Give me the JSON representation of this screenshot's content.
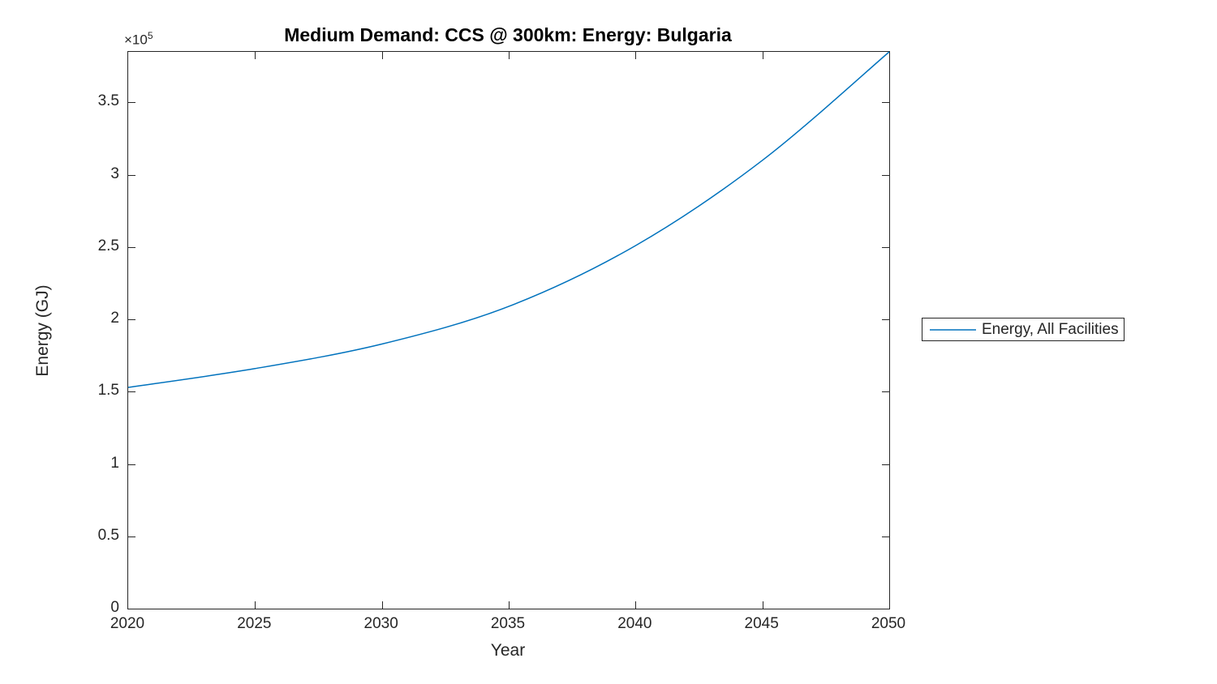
{
  "figure": {
    "title": "Medium Demand: CCS @ 300km: Energy: Bulgaria",
    "xlabel": "Year",
    "ylabel": "Energy (GJ)",
    "y_multiplier_base": "×10",
    "y_multiplier_exp": "5",
    "legend": {
      "label": "Energy, All Facilities"
    },
    "colors": {
      "line": "#0072BD",
      "axis": "#262626",
      "title": "#000000",
      "background": "#ffffff"
    }
  },
  "chart_data": {
    "type": "line",
    "title": "Medium Demand: CCS @ 300km: Energy: Bulgaria",
    "xlabel": "Year",
    "ylabel": "Energy (GJ)",
    "x": [
      2020,
      2025,
      2030,
      2035,
      2040,
      2045,
      2050
    ],
    "series": [
      {
        "name": "Energy, All Facilities",
        "color": "#0072BD",
        "values": [
          153000,
          166000,
          183000,
          209000,
          251000,
          310000,
          385000
        ]
      }
    ],
    "xlim": [
      2020,
      2050
    ],
    "ylim": [
      0,
      385000
    ],
    "xticks": [
      2020,
      2025,
      2030,
      2035,
      2040,
      2045,
      2050
    ],
    "xtick_labels": [
      "2020",
      "2025",
      "2030",
      "2035",
      "2040",
      "2045",
      "2050"
    ],
    "yticks": [
      0,
      50000,
      100000,
      150000,
      200000,
      250000,
      300000,
      350000
    ],
    "ytick_labels": [
      "0",
      "0.5",
      "1",
      "1.5",
      "2",
      "2.5",
      "3",
      "3.5"
    ],
    "y_scale_exponent": 5,
    "grid": false,
    "box": true,
    "legend_position": "right-outside"
  }
}
